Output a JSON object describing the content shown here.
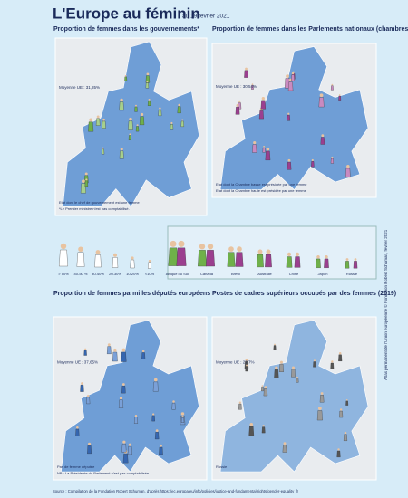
{
  "header": {
    "title": "L'Europe au féminin",
    "date": "au 19 février 2021"
  },
  "panels": [
    {
      "title": "Proportion de femmes dans les gouvernements*",
      "average": "Moyenne UE : 31,85%",
      "notes": [
        "Etat dont le chef de gouvernement est une femme",
        "*Le Premier ministre n'est pas comptabilisé."
      ]
    },
    {
      "title": "Proportion de femmes dans les Parlements nationaux (chambres basses ou uniques)",
      "average": "Moyenne UE : 30,54%",
      "notes": [
        "Etat dont la Chambre basse est présidée par une femme",
        "Etat dont la Chambre haute est présidée par une femme"
      ]
    },
    {
      "title": "Proportion de femmes parmi les députés européens",
      "average": "Moyenne UE : 37,65%",
      "notes": [
        "Pas de femme députée",
        "NB : La Présidente du Parlement n'est pas comptabilisée."
      ]
    },
    {
      "title": "Postes de cadres supérieurs occupés par des femmes (2019)",
      "average": "Moyenne UE : 27,7%",
      "notes": [
        "Russie"
      ]
    }
  ],
  "legend": {
    "levels": [
      "> 50%",
      "40-50 %",
      "30-40%",
      "20-30%",
      "10-20%",
      "<10%"
    ],
    "countries": [
      "Afrique du Sud",
      "Canada",
      "Brésil",
      "Australie",
      "Chine",
      "Japon",
      "Russie"
    ]
  },
  "source": "Source : Compilation de la Fondation Robert Schuman, d'après https://ec.europa.eu/info/policies/justice-and-fundamental-rights/gender-equality_fr",
  "credit": "Atlas permanent de l'Union européenne © Fondation Robert Schuman, février 2021"
}
